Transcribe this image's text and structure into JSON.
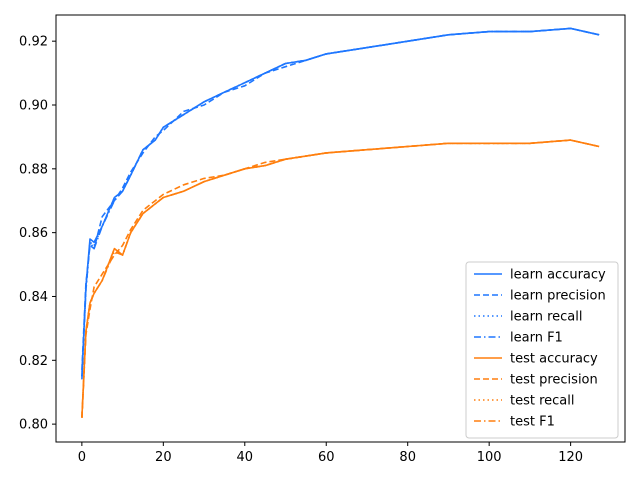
{
  "chart_data": {
    "type": "line",
    "title": "",
    "xlabel": "",
    "ylabel": "",
    "xlim": [
      -6.35,
      133.35
    ],
    "ylim": [
      0.7944,
      0.9282
    ],
    "xticks": [
      0,
      20,
      40,
      60,
      80,
      100,
      120
    ],
    "yticks": [
      0.8,
      0.82,
      0.84,
      0.86,
      0.88,
      0.9,
      0.92
    ],
    "ytick_labels": [
      "0.80",
      "0.82",
      "0.84",
      "0.86",
      "0.88",
      "0.90",
      "0.92"
    ],
    "grid": false,
    "legend_position": "lower-right",
    "x": [
      0,
      1,
      2,
      3,
      5,
      8,
      10,
      12,
      15,
      18,
      20,
      25,
      30,
      35,
      40,
      45,
      50,
      55,
      60,
      70,
      80,
      90,
      100,
      110,
      120,
      127
    ],
    "series": [
      {
        "name": "learn accuracy",
        "color": "#1f77ff",
        "style": "solid",
        "values": [
          0.815,
          0.843,
          0.858,
          0.857,
          0.862,
          0.871,
          0.873,
          0.878,
          0.886,
          0.889,
          0.893,
          0.897,
          0.901,
          0.904,
          0.907,
          0.91,
          0.913,
          0.914,
          0.916,
          0.918,
          0.92,
          0.922,
          0.923,
          0.923,
          0.924,
          0.922
        ]
      },
      {
        "name": "learn precision",
        "color": "#1f77ff",
        "style": "dashed",
        "values": [
          0.817,
          0.844,
          0.856,
          0.855,
          0.865,
          0.87,
          0.874,
          0.879,
          0.885,
          0.89,
          0.892,
          0.898,
          0.9,
          0.904,
          0.906,
          0.91,
          0.912,
          0.914,
          0.916,
          0.918,
          0.92,
          0.922,
          0.923,
          0.923,
          0.924,
          0.922
        ]
      },
      {
        "name": "learn recall",
        "color": "#1f77ff",
        "style": "dotted",
        "values": [
          0.815,
          0.842,
          0.857,
          0.856,
          0.862,
          0.871,
          0.873,
          0.878,
          0.886,
          0.889,
          0.893,
          0.897,
          0.901,
          0.904,
          0.907,
          0.91,
          0.913,
          0.914,
          0.916,
          0.918,
          0.92,
          0.922,
          0.923,
          0.923,
          0.924,
          0.922
        ]
      },
      {
        "name": "learn F1",
        "color": "#1f77ff",
        "style": "dashdot",
        "values": [
          0.814,
          0.842,
          0.857,
          0.855,
          0.862,
          0.87,
          0.873,
          0.878,
          0.886,
          0.889,
          0.893,
          0.897,
          0.901,
          0.904,
          0.907,
          0.91,
          0.913,
          0.914,
          0.916,
          0.918,
          0.92,
          0.922,
          0.923,
          0.923,
          0.924,
          0.922
        ]
      },
      {
        "name": "test accuracy",
        "color": "#ff7f0e",
        "style": "solid",
        "values": [
          0.802,
          0.829,
          0.838,
          0.841,
          0.845,
          0.855,
          0.853,
          0.86,
          0.866,
          0.869,
          0.871,
          0.873,
          0.876,
          0.878,
          0.88,
          0.881,
          0.883,
          0.884,
          0.885,
          0.886,
          0.887,
          0.888,
          0.888,
          0.888,
          0.889,
          0.887
        ]
      },
      {
        "name": "test precision",
        "color": "#ff7f0e",
        "style": "dashed",
        "values": [
          0.802,
          0.828,
          0.836,
          0.843,
          0.847,
          0.853,
          0.856,
          0.861,
          0.867,
          0.87,
          0.872,
          0.875,
          0.877,
          0.878,
          0.88,
          0.882,
          0.883,
          0.884,
          0.885,
          0.886,
          0.887,
          0.888,
          0.888,
          0.888,
          0.889,
          0.887
        ]
      },
      {
        "name": "test recall",
        "color": "#ff7f0e",
        "style": "dotted",
        "values": [
          0.802,
          0.829,
          0.838,
          0.841,
          0.845,
          0.855,
          0.853,
          0.86,
          0.866,
          0.869,
          0.871,
          0.873,
          0.876,
          0.878,
          0.88,
          0.881,
          0.883,
          0.884,
          0.885,
          0.886,
          0.887,
          0.888,
          0.888,
          0.888,
          0.889,
          0.887
        ]
      },
      {
        "name": "test F1",
        "color": "#ff7f0e",
        "style": "dashdot",
        "values": [
          0.802,
          0.829,
          0.838,
          0.841,
          0.845,
          0.854,
          0.853,
          0.86,
          0.866,
          0.869,
          0.871,
          0.873,
          0.876,
          0.878,
          0.88,
          0.881,
          0.883,
          0.884,
          0.885,
          0.886,
          0.887,
          0.888,
          0.888,
          0.888,
          0.889,
          0.887
        ]
      }
    ]
  }
}
